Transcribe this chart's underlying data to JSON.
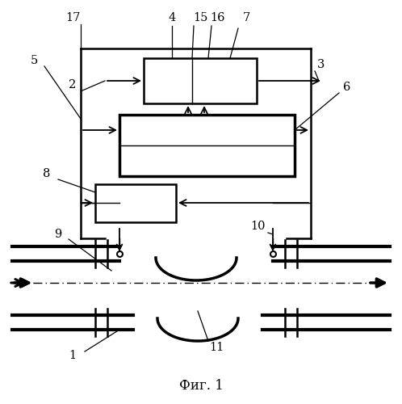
{
  "bg_color": "#ffffff",
  "fig_width": 4.98,
  "fig_height": 5.0,
  "caption": "Фиг. 1"
}
